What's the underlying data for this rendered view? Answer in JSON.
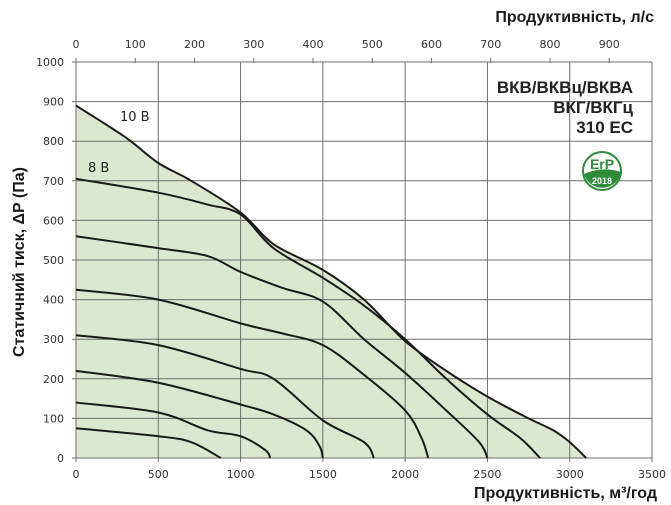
{
  "chart_data": {
    "type": "line",
    "title": "ВКВ/ВКВц/ВКВА ВКГ/ВКГц 310 ЕС",
    "xlabel": "Продуктивність, м³/год",
    "x2label": "Продуктивність, л/с",
    "ylabel": "Статичний тиск, ΔP (Па)",
    "xlim": [
      0,
      3500
    ],
    "ylim": [
      0,
      1000
    ],
    "x_ticks": [
      0,
      500,
      1000,
      1500,
      2000,
      2500,
      3000,
      3500
    ],
    "x2_ticks": [
      0,
      100,
      200,
      300,
      400,
      500,
      600,
      700,
      800,
      900
    ],
    "y_ticks": [
      0,
      100,
      200,
      300,
      400,
      500,
      600,
      700,
      800,
      900,
      1000
    ],
    "grid": true,
    "fill_color": "#dbe8cf",
    "line_color": "#1a1a1a",
    "series": [
      {
        "name": "10 В",
        "points": [
          [
            0,
            890
          ],
          [
            300,
            810
          ],
          [
            500,
            745
          ],
          [
            700,
            700
          ],
          [
            1000,
            620
          ],
          [
            1200,
            540
          ],
          [
            1500,
            475
          ],
          [
            1750,
            400
          ],
          [
            2000,
            295
          ],
          [
            2250,
            220
          ],
          [
            2500,
            155
          ],
          [
            2750,
            100
          ],
          [
            2900,
            70
          ],
          [
            3000,
            40
          ],
          [
            3100,
            0
          ]
        ]
      },
      {
        "name": "8 В",
        "points": [
          [
            0,
            705
          ],
          [
            500,
            670
          ],
          [
            800,
            640
          ],
          [
            1000,
            615
          ],
          [
            1200,
            530
          ],
          [
            1500,
            455
          ],
          [
            1750,
            385
          ],
          [
            2000,
            300
          ],
          [
            2250,
            200
          ],
          [
            2500,
            110
          ],
          [
            2700,
            50
          ],
          [
            2820,
            0
          ]
        ]
      },
      {
        "name": "",
        "points": [
          [
            0,
            560
          ],
          [
            500,
            530
          ],
          [
            800,
            510
          ],
          [
            1000,
            470
          ],
          [
            1250,
            430
          ],
          [
            1500,
            395
          ],
          [
            1750,
            300
          ],
          [
            2000,
            215
          ],
          [
            2250,
            120
          ],
          [
            2450,
            40
          ],
          [
            2500,
            0
          ]
        ]
      },
      {
        "name": "",
        "points": [
          [
            0,
            425
          ],
          [
            500,
            400
          ],
          [
            1000,
            340
          ],
          [
            1250,
            315
          ],
          [
            1500,
            285
          ],
          [
            1750,
            210
          ],
          [
            2000,
            120
          ],
          [
            2100,
            50
          ],
          [
            2140,
            0
          ]
        ]
      },
      {
        "name": "",
        "points": [
          [
            0,
            310
          ],
          [
            500,
            285
          ],
          [
            1000,
            225
          ],
          [
            1200,
            200
          ],
          [
            1500,
            95
          ],
          [
            1750,
            40
          ],
          [
            1810,
            0
          ]
        ]
      },
      {
        "name": "",
        "points": [
          [
            0,
            220
          ],
          [
            500,
            190
          ],
          [
            1000,
            135
          ],
          [
            1200,
            110
          ],
          [
            1400,
            70
          ],
          [
            1480,
            30
          ],
          [
            1500,
            0
          ]
        ]
      },
      {
        "name": "",
        "points": [
          [
            0,
            140
          ],
          [
            500,
            115
          ],
          [
            800,
            70
          ],
          [
            1000,
            55
          ],
          [
            1150,
            20
          ],
          [
            1180,
            0
          ]
        ]
      },
      {
        "name": "",
        "points": [
          [
            0,
            75
          ],
          [
            500,
            55
          ],
          [
            700,
            40
          ],
          [
            880,
            0
          ]
        ]
      }
    ],
    "annotations": [
      "10 В",
      "8 В"
    ],
    "badge": {
      "text_top": "ErP",
      "text_bottom": "2018",
      "color": "#2e8b3a"
    }
  },
  "labels": {
    "model_line1": "ВКВ/ВКВц/ВКВА",
    "model_line2": "ВКГ/ВКГц",
    "model_line3": "310 ЕС",
    "erp_top": "ErP",
    "erp_year": "2018"
  }
}
